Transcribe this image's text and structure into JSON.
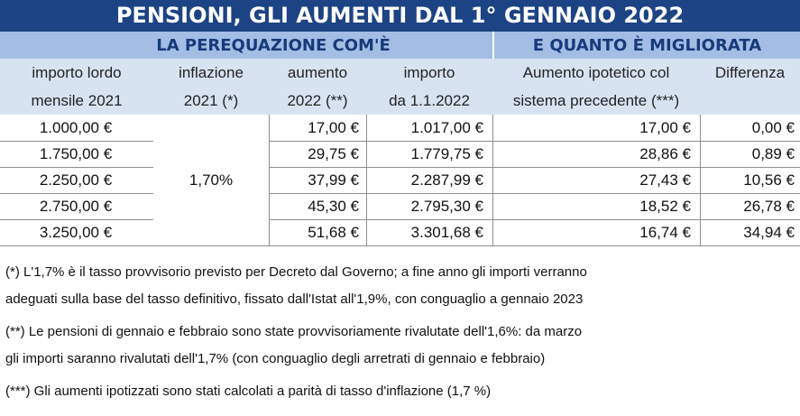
{
  "title": "PENSIONI, GLI AUMENTI DAL 1° GENNAIO 2022",
  "bands": {
    "left": "LA PEREQUAZIONE COM'È",
    "right": "E QUANTO È MIGLIORATA"
  },
  "headers": [
    [
      "importo lordo",
      "mensile 2021"
    ],
    [
      "inflazione",
      "2021 (*)"
    ],
    [
      "aumento",
      "2022 (**)"
    ],
    [
      "importo",
      "da 1.1.2022"
    ],
    [
      "Aumento ipotetico col",
      "sistema precedente (***)"
    ],
    [
      "",
      "Differenza"
    ]
  ],
  "inflation": "1,70%",
  "rows": [
    {
      "importo": "1.000,00 €",
      "aumento": "17,00 €",
      "nuovo": "1.017,00 €",
      "ipotetico": "17,00 €",
      "differenza": "0,00 €"
    },
    {
      "importo": "1.750,00 €",
      "aumento": "29,75 €",
      "nuovo": "1.779,75 €",
      "ipotetico": "28,86 €",
      "differenza": "0,89 €"
    },
    {
      "importo": "2.250,00 €",
      "aumento": "37,99 €",
      "nuovo": "2.287,99 €",
      "ipotetico": "27,43 €",
      "differenza": "10,56 €"
    },
    {
      "importo": "2.750,00 €",
      "aumento": "45,30 €",
      "nuovo": "2.795,30 €",
      "ipotetico": "18,52 €",
      "differenza": "26,78 €"
    },
    {
      "importo": "3.250,00 €",
      "aumento": "51,68 €",
      "nuovo": "3.301,68 €",
      "ipotetico": "16,74 €",
      "differenza": "34,94 €"
    }
  ],
  "notes": [
    [
      "(*) L'1,7% è il tasso provvisorio previsto per Decreto dal Governo; a fine anno gli importi verranno",
      "adeguati sulla base del tasso definitivo, fissato dall'Istat all'1,9%, con conguaglio a gennaio 2023"
    ],
    [
      "(**) Le pensioni di gennaio e febbraio sono state provvisoriamente rivalutate dell'1,6%: da marzo",
      "gli importi saranno rivalutati dell'1,7% (con conguaglio degli arretrati di gennaio e febbraio)"
    ],
    [
      "(***) Gli aumenti ipotizzati sono stati calcolati a parità di tasso d'inflazione (1,7 %)"
    ]
  ]
}
